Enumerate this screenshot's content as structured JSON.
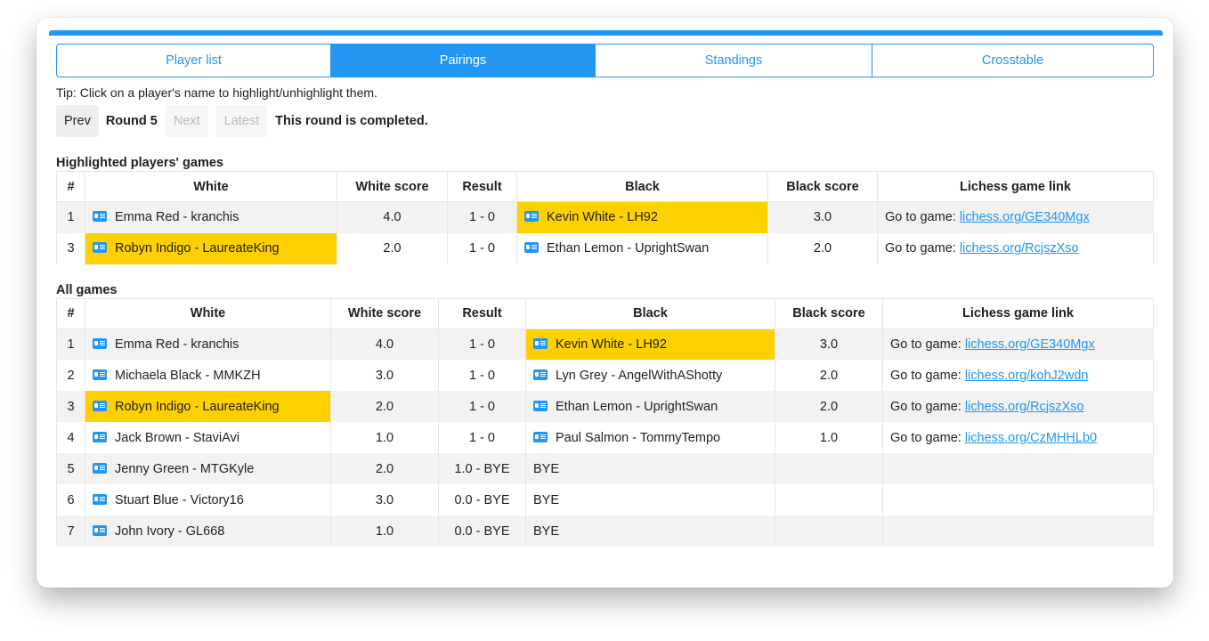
{
  "tabs": [
    {
      "label": "Player list",
      "active": false
    },
    {
      "label": "Pairings",
      "active": true
    },
    {
      "label": "Standings",
      "active": false
    },
    {
      "label": "Crosstable",
      "active": false
    }
  ],
  "tip": "Tip: Click on a player's name to highlight/unhighlight them.",
  "round_nav": {
    "prev": "Prev",
    "round": "Round 5",
    "next": "Next",
    "latest": "Latest",
    "status": "This round is completed."
  },
  "highlighted": {
    "title": "Highlighted players' games",
    "headers": [
      "#",
      "White",
      "White score",
      "Result",
      "Black",
      "Black score",
      "Lichess game link"
    ],
    "rows": [
      {
        "num": "1",
        "white": "Emma Red - kranchis",
        "white_hl": false,
        "white_score": "4.0",
        "result": "1 - 0",
        "black": "Kevin White - LH92",
        "black_hl": true,
        "black_score": "3.0",
        "link_prefix": "Go to game: ",
        "link": "lichess.org/GE340Mgx"
      },
      {
        "num": "3",
        "white": "Robyn Indigo - LaureateKing",
        "white_hl": true,
        "white_score": "2.0",
        "result": "1 - 0",
        "black": "Ethan Lemon - UprightSwan",
        "black_hl": false,
        "black_score": "2.0",
        "link_prefix": "Go to game: ",
        "link": "lichess.org/RcjszXso"
      }
    ]
  },
  "all": {
    "title": "All games",
    "headers": [
      "#",
      "White",
      "White score",
      "Result",
      "Black",
      "Black score",
      "Lichess game link"
    ],
    "rows": [
      {
        "num": "1",
        "white": "Emma Red - kranchis",
        "white_hl": false,
        "white_score": "4.0",
        "result": "1 - 0",
        "black": "Kevin White - LH92",
        "black_hl": true,
        "black_icon": true,
        "black_score": "3.0",
        "link_prefix": "Go to game: ",
        "link": "lichess.org/GE340Mgx"
      },
      {
        "num": "2",
        "white": "Michaela Black - MMKZH",
        "white_hl": false,
        "white_score": "3.0",
        "result": "1 - 0",
        "black": "Lyn Grey - AngelWithAShotty",
        "black_hl": false,
        "black_icon": true,
        "black_score": "2.0",
        "link_prefix": "Go to game: ",
        "link": "lichess.org/kohJ2wdn"
      },
      {
        "num": "3",
        "white": "Robyn Indigo - LaureateKing",
        "white_hl": true,
        "white_score": "2.0",
        "result": "1 - 0",
        "black": "Ethan Lemon - UprightSwan",
        "black_hl": false,
        "black_icon": true,
        "black_score": "2.0",
        "link_prefix": "Go to game: ",
        "link": "lichess.org/RcjszXso"
      },
      {
        "num": "4",
        "white": "Jack Brown - StaviAvi",
        "white_hl": false,
        "white_score": "1.0",
        "result": "1 - 0",
        "black": "Paul Salmon - TommyTempo",
        "black_hl": false,
        "black_icon": true,
        "black_score": "1.0",
        "link_prefix": "Go to game: ",
        "link": "lichess.org/CzMHHLb0"
      },
      {
        "num": "5",
        "white": "Jenny Green - MTGKyle",
        "white_hl": false,
        "white_score": "2.0",
        "result": "1.0 - BYE",
        "black": "BYE",
        "black_hl": false,
        "black_icon": false,
        "black_score": "",
        "link_prefix": "",
        "link": ""
      },
      {
        "num": "6",
        "white": "Stuart Blue - Victory16",
        "white_hl": false,
        "white_score": "3.0",
        "result": "0.0 - BYE",
        "black": "BYE",
        "black_hl": false,
        "black_icon": false,
        "black_score": "",
        "link_prefix": "",
        "link": ""
      },
      {
        "num": "7",
        "white": "John Ivory - GL668",
        "white_hl": false,
        "white_score": "1.0",
        "result": "0.0 - BYE",
        "black": "BYE",
        "black_hl": false,
        "black_icon": false,
        "black_score": "",
        "link_prefix": "",
        "link": ""
      }
    ]
  },
  "colors": {
    "accent": "#2196f3",
    "highlight": "#ffd000",
    "row_stripe": "#f2f2f2"
  },
  "icons": {
    "player": "player-card-icon"
  }
}
